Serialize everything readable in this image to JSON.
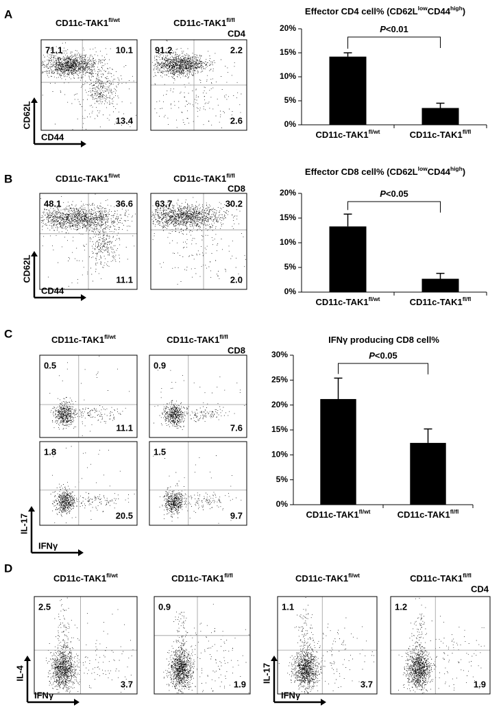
{
  "panels": [
    {
      "label": "A",
      "tag": "CD4",
      "titles": [
        {
          "base": "CD11c-TAK1",
          "sup": "fl/wt"
        },
        {
          "base": "CD11c-TAK1",
          "sup": "fl/fl"
        }
      ],
      "axes": [
        {
          "y": "CD62L",
          "x": "CD44"
        }
      ],
      "plots": [
        {
          "top_left": "71.1",
          "top_right": "10.1",
          "bottom_right": "13.4"
        },
        {
          "top_left": "91.2",
          "top_right": "2.2",
          "bottom_right": "2.6"
        }
      ]
    },
    {
      "label": "B",
      "tag": "CD8",
      "titles": [
        {
          "base": "CD11c-TAK1",
          "sup": "fl/wt"
        },
        {
          "base": "CD11c-TAK1",
          "sup": "fl/fl"
        }
      ],
      "axes": [
        {
          "y": "CD62L",
          "x": "CD44"
        }
      ],
      "plots": [
        {
          "top_left": "48.1",
          "top_right": "36.6",
          "bottom_right": "11.1"
        },
        {
          "top_left": "63.7",
          "top_right": "30.2",
          "bottom_right": "2.0"
        }
      ]
    },
    {
      "label": "C",
      "tag": "CD8",
      "titles": [
        {
          "base": "CD11c-TAK1",
          "sup": "fl/wt"
        },
        {
          "base": "CD11c-TAK1",
          "sup": "fl/fl"
        }
      ],
      "axes": [
        {
          "y": "IL-17",
          "x": "IFNγ"
        }
      ],
      "plots": [
        {
          "top_left": "0.5",
          "bottom_right": "11.1"
        },
        {
          "top_left": "0.9",
          "bottom_right": "7.6"
        },
        {
          "top_left": "1.8",
          "bottom_right": "20.5"
        },
        {
          "top_left": "1.5",
          "bottom_right": "9.7"
        }
      ]
    },
    {
      "label": "D",
      "tag": "CD4",
      "titles": [
        {
          "base": "CD11c-TAK1",
          "sup": "fl/wt"
        },
        {
          "base": "CD11c-TAK1",
          "sup": "fl/fl"
        },
        {
          "base": "CD11c-TAK1",
          "sup": "fl/wt"
        },
        {
          "base": "CD11c-TAK1",
          "sup": "fl/fl"
        }
      ],
      "axes": [
        {
          "y": "IL-4",
          "x": "IFNγ"
        },
        {
          "y": "IL-17",
          "x": "IFNγ"
        }
      ],
      "plots": [
        {
          "top_left": "2.5",
          "bottom_right": "3.7"
        },
        {
          "top_left": "0.9",
          "bottom_right": "1.9"
        },
        {
          "top_left": "1.1",
          "bottom_right": "3.7"
        },
        {
          "top_left": "1.2",
          "bottom_right": "1.9"
        }
      ]
    }
  ],
  "chart_data": [
    {
      "type": "bar",
      "title": [
        {
          "text": "Effector CD4 cell% (CD62L"
        },
        {
          "text": "low",
          "sup": true
        },
        {
          "text": "CD44"
        },
        {
          "text": "high",
          "sup": true
        },
        {
          "text": ")"
        }
      ],
      "categories": [
        {
          "base": "CD11c-TAK1",
          "sup": "fl/wt"
        },
        {
          "base": "CD11c-TAK1",
          "sup": "fl/fl"
        }
      ],
      "values": [
        14.2,
        3.5
      ],
      "errors": [
        0.8,
        1.0
      ],
      "color": "#000000",
      "ylim": [
        0,
        20
      ],
      "yticks": [
        {
          "value": 0,
          "label": "0%"
        },
        {
          "value": 5,
          "label": "5%"
        },
        {
          "value": 10,
          "label": "10%"
        },
        {
          "value": 15,
          "label": "15%"
        },
        {
          "value": 20,
          "label": "20%"
        }
      ],
      "annotation": [
        {
          "text": "P",
          "italic": true
        },
        {
          "text": "<0.01"
        }
      ]
    },
    {
      "type": "bar",
      "title": [
        {
          "text": "Effector CD8 cell% (CD62L"
        },
        {
          "text": "low",
          "sup": true
        },
        {
          "text": "CD44"
        },
        {
          "text": "high",
          "sup": true
        },
        {
          "text": ")"
        }
      ],
      "categories": [
        {
          "base": "CD11c-TAK1",
          "sup": "fl/wt"
        },
        {
          "base": "CD11c-TAK1",
          "sup": "fl/fl"
        }
      ],
      "values": [
        13.3,
        2.7
      ],
      "errors": [
        2.5,
        1.1
      ],
      "color": "#000000",
      "ylim": [
        0,
        20
      ],
      "yticks": [
        {
          "value": 0,
          "label": "0%"
        },
        {
          "value": 5,
          "label": "5%"
        },
        {
          "value": 10,
          "label": "10%"
        },
        {
          "value": 15,
          "label": "15%"
        },
        {
          "value": 20,
          "label": "20%"
        }
      ],
      "annotation": [
        {
          "text": "P",
          "italic": true
        },
        {
          "text": "<0.05"
        }
      ]
    },
    {
      "type": "bar",
      "title": [
        {
          "text": "IFNγ producing CD8 cell%"
        }
      ],
      "categories": [
        {
          "base": "CD11c-TAK1",
          "sup": "fl/wt"
        },
        {
          "base": "CD11c-TAK1",
          "sup": "fl/fl"
        }
      ],
      "values": [
        21.2,
        12.4
      ],
      "errors": [
        4.2,
        2.8
      ],
      "color": "#000000",
      "ylim": [
        0,
        30
      ],
      "yticks": [
        {
          "value": 0,
          "label": "0%"
        },
        {
          "value": 5,
          "label": "5%"
        },
        {
          "value": 10,
          "label": "10%"
        },
        {
          "value": 15,
          "label": "15%"
        },
        {
          "value": 20,
          "label": "20%"
        },
        {
          "value": 25,
          "label": "25%"
        },
        {
          "value": 30,
          "label": "30%"
        }
      ],
      "annotation": [
        {
          "text": "P",
          "italic": true
        },
        {
          "text": "<0.05"
        }
      ]
    }
  ]
}
